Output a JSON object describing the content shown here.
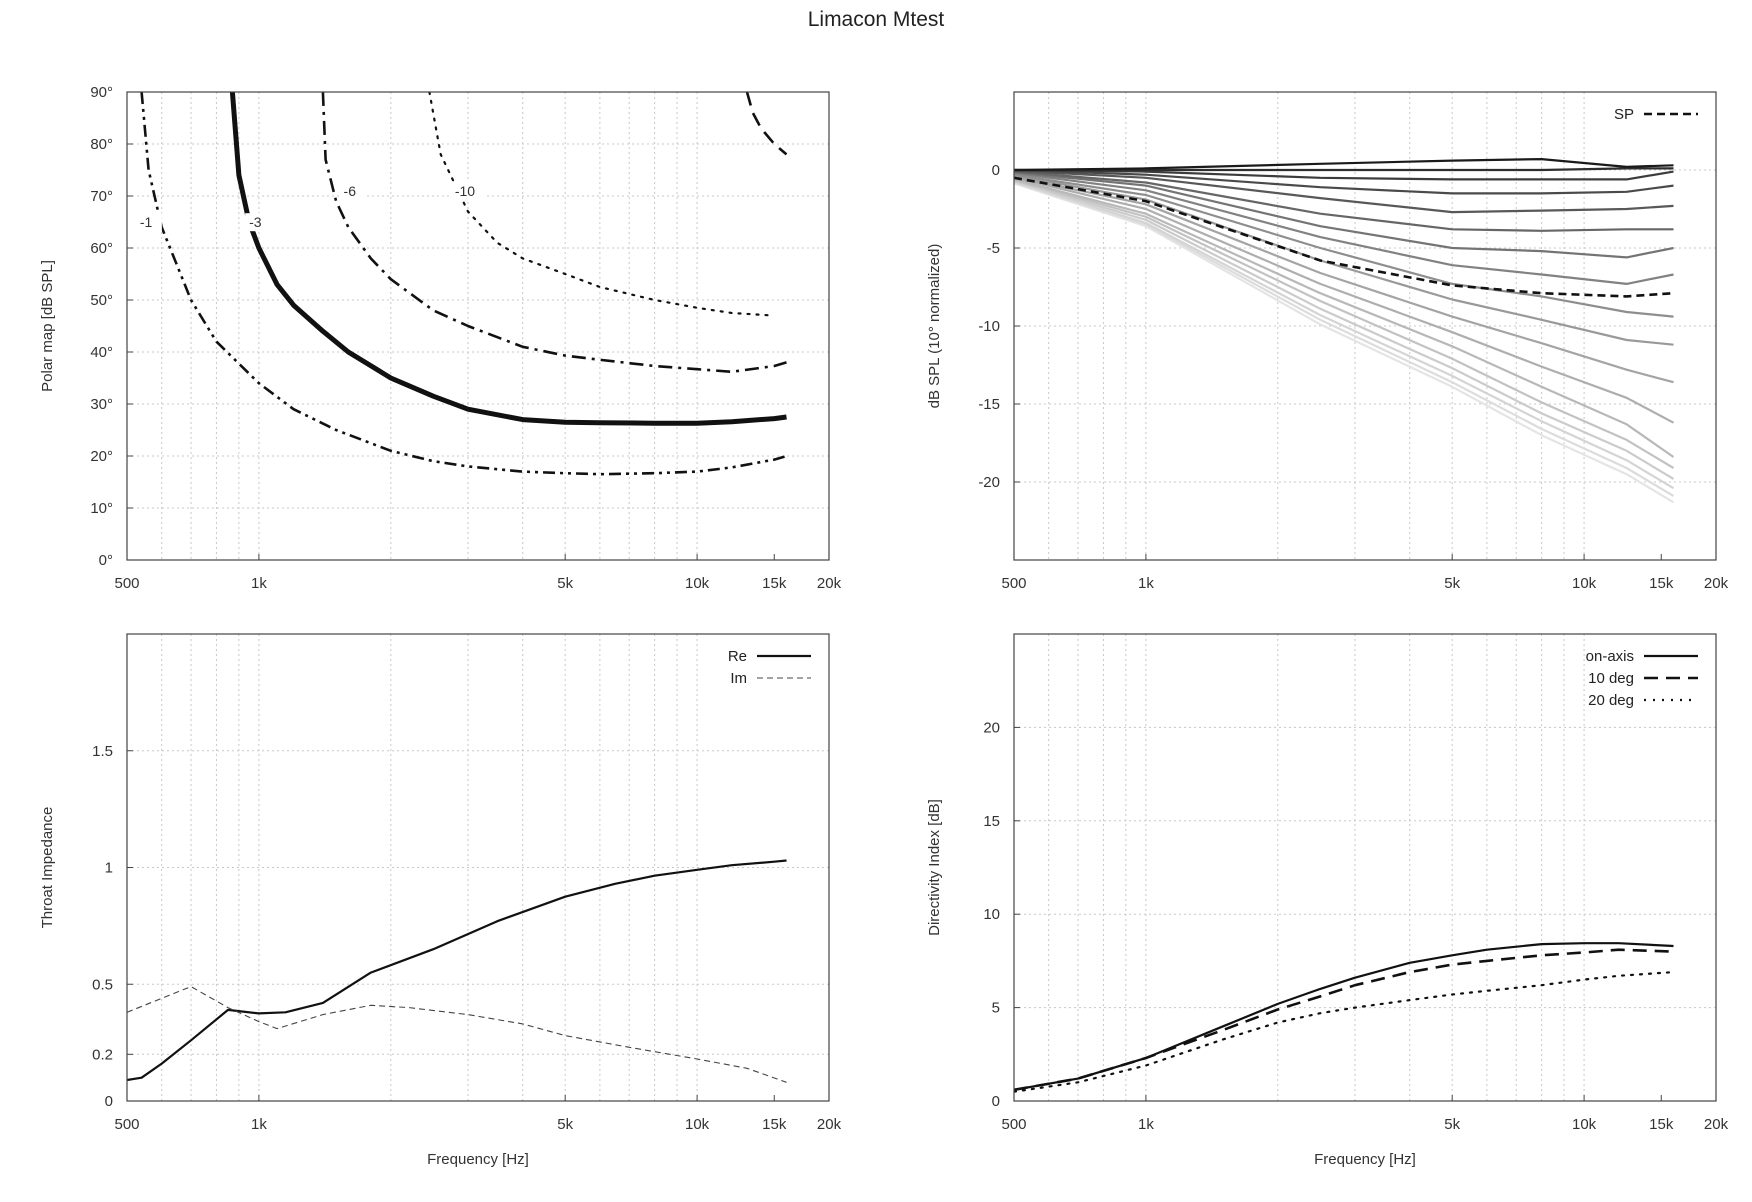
{
  "figure_title": "Limacon Mtest",
  "chart_data": [
    {
      "id": "polar",
      "type": "line",
      "title": "",
      "xlabel": "",
      "ylabel": "Polar map [dB SPL]",
      "xscale": "log",
      "xlim": [
        500,
        20000
      ],
      "ylim": [
        0,
        90
      ],
      "x_ticks": [
        500,
        1000,
        5000,
        10000,
        15000,
        20000
      ],
      "x_tick_labels": [
        "500",
        "1k",
        "5k",
        "10k",
        "15k",
        "20k"
      ],
      "y_ticks": [
        0,
        10,
        20,
        30,
        40,
        50,
        60,
        70,
        80,
        90
      ],
      "y_tick_labels": [
        "0°",
        "10°",
        "20°",
        "30°",
        "40°",
        "50°",
        "60°",
        "70°",
        "80°",
        "90°"
      ],
      "grid": true,
      "legend": "none",
      "series": [
        {
          "label": "-1",
          "style": "dash-dot-dot",
          "color": "#111111",
          "label_at": [
            535,
            64
          ],
          "x": [
            540,
            560,
            600,
            700,
            800,
            1000,
            1200,
            1500,
            2000,
            2500,
            3000,
            4000,
            5000,
            6000,
            8000,
            10000,
            12000,
            15000,
            16000
          ],
          "y": [
            90,
            75,
            64,
            50,
            42,
            34,
            29,
            25,
            21,
            19,
            18,
            17,
            16.7,
            16.5,
            16.7,
            17,
            17.8,
            19.3,
            20
          ]
        },
        {
          "label": "-3",
          "style": "thick-solid",
          "color": "#111111",
          "label_at": [
            950,
            64
          ],
          "x": [
            870,
            900,
            950,
            1000,
            1100,
            1200,
            1400,
            1600,
            2000,
            2500,
            3000,
            4000,
            5000,
            6000,
            8000,
            10000,
            12000,
            15000,
            16000
          ],
          "y": [
            90,
            74,
            65,
            60,
            53,
            49,
            44,
            40,
            35,
            31.5,
            29,
            27,
            26.5,
            26.4,
            26.3,
            26.3,
            26.6,
            27.2,
            27.5
          ]
        },
        {
          "label": "-6",
          "style": "dash-dot",
          "color": "#111111",
          "label_at": [
            1560,
            70
          ],
          "x": [
            1400,
            1420,
            1500,
            1600,
            1800,
            2000,
            2500,
            3000,
            4000,
            5000,
            6000,
            8000,
            10000,
            12000,
            15000,
            16000
          ],
          "y": [
            90,
            77,
            69,
            64,
            58,
            54,
            48,
            45,
            41,
            39.3,
            38.5,
            37.3,
            36.7,
            36.2,
            37.3,
            38
          ]
        },
        {
          "label": "-10",
          "style": "dotted",
          "color": "#111111",
          "label_at": [
            2800,
            70
          ],
          "x": [
            2450,
            2600,
            3000,
            3500,
            4000,
            5000,
            6000,
            8000,
            10000,
            12000,
            15000
          ],
          "y": [
            90,
            78,
            67,
            61,
            58,
            55,
            52.5,
            50,
            48.5,
            47.5,
            47
          ]
        },
        {
          "label": "",
          "style": "long-dash",
          "color": "#111111",
          "label_at": null,
          "x": [
            13000,
            13400,
            14000,
            15000,
            16000
          ],
          "y": [
            90,
            86,
            83,
            80,
            78
          ]
        }
      ]
    },
    {
      "id": "normalized",
      "type": "line",
      "title": "",
      "xlabel": "",
      "ylabel": "dB SPL (10° normalized)",
      "xscale": "log",
      "xlim": [
        500,
        20000
      ],
      "ylim": [
        -25,
        5
      ],
      "x_ticks": [
        500,
        1000,
        5000,
        10000,
        15000,
        20000
      ],
      "x_tick_labels": [
        "500",
        "1k",
        "5k",
        "10k",
        "15k",
        "20k"
      ],
      "y_ticks": [
        0,
        -5,
        -10,
        -15,
        -20
      ],
      "y_tick_labels": [
        "0",
        "-5",
        "-10",
        "-15",
        "-20"
      ],
      "grid": true,
      "legend": "top-right",
      "x": [
        500,
        1000,
        2500,
        5000,
        8000,
        12500,
        16000
      ],
      "series": [
        {
          "name": "SP",
          "style": "dashed",
          "color": "#111111",
          "values": [
            -0.5,
            -2.0,
            -5.8,
            -7.4,
            -7.9,
            -8.1,
            -7.9
          ]
        },
        {
          "name": "",
          "style": "solid",
          "color": "#1a1a1a",
          "values": [
            0,
            0.1,
            0.4,
            0.6,
            0.7,
            0.2,
            0.3
          ]
        },
        {
          "name": "",
          "style": "solid",
          "color": "#2e2e2e",
          "values": [
            0,
            0,
            0,
            0,
            0,
            0.1,
            0.1
          ]
        },
        {
          "name": "",
          "style": "solid",
          "color": "#3c3c3c",
          "values": [
            0,
            -0.1,
            -0.5,
            -0.6,
            -0.6,
            -0.6,
            -0.1
          ]
        },
        {
          "name": "",
          "style": "solid",
          "color": "#4a4a4a",
          "values": [
            0,
            -0.3,
            -1.1,
            -1.5,
            -1.5,
            -1.4,
            -1.0
          ]
        },
        {
          "name": "",
          "style": "solid",
          "color": "#585858",
          "values": [
            -0.05,
            -0.5,
            -1.8,
            -2.7,
            -2.6,
            -2.5,
            -2.3
          ]
        },
        {
          "name": "",
          "style": "solid",
          "color": "#666666",
          "values": [
            -0.1,
            -0.8,
            -2.8,
            -3.8,
            -3.9,
            -3.8,
            -3.8
          ]
        },
        {
          "name": "",
          "style": "solid",
          "color": "#747474",
          "values": [
            -0.15,
            -1.0,
            -3.6,
            -5.0,
            -5.2,
            -5.6,
            -5.0
          ]
        },
        {
          "name": "",
          "style": "solid",
          "color": "#828282",
          "values": [
            -0.2,
            -1.3,
            -4.3,
            -6.1,
            -6.7,
            -7.3,
            -6.7
          ]
        },
        {
          "name": "",
          "style": "solid",
          "color": "#8e8e8e",
          "values": [
            -0.3,
            -1.6,
            -5.0,
            -7.3,
            -8.1,
            -9.1,
            -9.4
          ]
        },
        {
          "name": "",
          "style": "solid",
          "color": "#999999",
          "values": [
            -0.35,
            -1.9,
            -5.8,
            -8.3,
            -9.6,
            -10.9,
            -11.2
          ]
        },
        {
          "name": "",
          "style": "solid",
          "color": "#a4a4a4",
          "values": [
            -0.45,
            -2.2,
            -6.6,
            -9.4,
            -11.1,
            -12.8,
            -13.6
          ]
        },
        {
          "name": "",
          "style": "solid",
          "color": "#aeaeae",
          "values": [
            -0.5,
            -2.5,
            -7.3,
            -10.4,
            -12.6,
            -14.6,
            -16.2
          ]
        },
        {
          "name": "",
          "style": "solid",
          "color": "#b8b8b8",
          "values": [
            -0.6,
            -2.8,
            -7.9,
            -11.3,
            -13.9,
            -16.3,
            -18.4
          ]
        },
        {
          "name": "",
          "style": "solid",
          "color": "#c2c2c2",
          "values": [
            -0.65,
            -3.0,
            -8.4,
            -12.1,
            -14.9,
            -17.3,
            -19.1
          ]
        },
        {
          "name": "",
          "style": "solid",
          "color": "#cbcbcb",
          "values": [
            -0.7,
            -3.2,
            -8.9,
            -12.7,
            -15.6,
            -18.0,
            -19.8
          ]
        },
        {
          "name": "",
          "style": "solid",
          "color": "#d4d4d4",
          "values": [
            -0.75,
            -3.4,
            -9.3,
            -13.2,
            -16.1,
            -18.6,
            -20.4
          ]
        },
        {
          "name": "",
          "style": "solid",
          "color": "#dcdcdc",
          "values": [
            -0.8,
            -3.5,
            -9.6,
            -13.6,
            -16.6,
            -19.1,
            -20.9
          ]
        },
        {
          "name": "",
          "style": "solid",
          "color": "#e4e4e4",
          "values": [
            -0.85,
            -3.6,
            -9.9,
            -13.9,
            -17.0,
            -19.5,
            -21.3
          ]
        }
      ]
    },
    {
      "id": "impedance",
      "type": "line",
      "title": "",
      "xlabel": "Frequency [Hz]",
      "ylabel": "Throat Impedance",
      "xscale": "log",
      "xlim": [
        500,
        20000
      ],
      "ylim": [
        0,
        2
      ],
      "x_ticks": [
        500,
        1000,
        5000,
        10000,
        15000,
        20000
      ],
      "x_tick_labels": [
        "500",
        "1k",
        "5k",
        "10k",
        "15k",
        "20k"
      ],
      "y_ticks": [
        0,
        0.2,
        0.5,
        1,
        1.5
      ],
      "y_tick_labels": [
        "0",
        "0.2",
        "0.5",
        "1",
        "1.5"
      ],
      "grid": true,
      "legend": "top-right",
      "series": [
        {
          "name": "Re",
          "style": "solid",
          "color": "#111111",
          "x": [
            500,
            540,
            600,
            700,
            850,
            1000,
            1150,
            1400,
            1800,
            2500,
            3500,
            5000,
            6500,
            8000,
            10000,
            12000,
            15000,
            16000
          ],
          "y": [
            0.09,
            0.1,
            0.16,
            0.26,
            0.39,
            0.375,
            0.38,
            0.42,
            0.55,
            0.65,
            0.77,
            0.875,
            0.93,
            0.965,
            0.99,
            1.01,
            1.025,
            1.03
          ]
        },
        {
          "name": "Im",
          "style": "thin-dashed",
          "color": "#444444",
          "x": [
            500,
            600,
            700,
            850,
            1000,
            1100,
            1400,
            1800,
            2200,
            3000,
            4000,
            5000,
            7000,
            10000,
            13000,
            16000
          ],
          "y": [
            0.38,
            0.44,
            0.49,
            0.4,
            0.34,
            0.31,
            0.37,
            0.41,
            0.4,
            0.37,
            0.33,
            0.28,
            0.23,
            0.18,
            0.14,
            0.08
          ]
        }
      ]
    },
    {
      "id": "directivity",
      "type": "line",
      "title": "",
      "xlabel": "Frequency [Hz]",
      "ylabel": "Directivity Index [dB]",
      "xscale": "log",
      "xlim": [
        500,
        20000
      ],
      "ylim": [
        0,
        25
      ],
      "x_ticks": [
        500,
        1000,
        5000,
        10000,
        15000,
        20000
      ],
      "x_tick_labels": [
        "500",
        "1k",
        "5k",
        "10k",
        "15k",
        "20k"
      ],
      "y_ticks": [
        0,
        5,
        10,
        15,
        20
      ],
      "y_tick_labels": [
        "0",
        "5",
        "10",
        "15",
        "20"
      ],
      "grid": true,
      "legend": "top-right",
      "series": [
        {
          "name": "on-axis",
          "style": "solid",
          "color": "#111111",
          "x": [
            500,
            700,
            1000,
            1500,
            2000,
            2500,
            3000,
            4000,
            5000,
            6000,
            8000,
            10000,
            12000,
            16000
          ],
          "y": [
            0.6,
            1.2,
            2.3,
            4.0,
            5.2,
            6.0,
            6.6,
            7.4,
            7.8,
            8.1,
            8.4,
            8.45,
            8.45,
            8.3
          ]
        },
        {
          "name": "10 deg",
          "style": "long-dash",
          "color": "#111111",
          "x": [
            500,
            700,
            1000,
            1500,
            2000,
            2500,
            3000,
            4000,
            5000,
            6000,
            8000,
            10000,
            12000,
            16000
          ],
          "y": [
            0.6,
            1.2,
            2.3,
            3.8,
            4.9,
            5.6,
            6.2,
            6.9,
            7.3,
            7.5,
            7.8,
            7.95,
            8.1,
            8.0
          ]
        },
        {
          "name": "20 deg",
          "style": "dotted",
          "color": "#111111",
          "x": [
            500,
            700,
            1000,
            1500,
            2000,
            2500,
            3000,
            4000,
            5000,
            6000,
            8000,
            10000,
            12000,
            16000
          ],
          "y": [
            0.5,
            1.0,
            1.9,
            3.3,
            4.2,
            4.7,
            5.0,
            5.4,
            5.7,
            5.9,
            6.2,
            6.5,
            6.7,
            6.9
          ]
        }
      ]
    }
  ]
}
